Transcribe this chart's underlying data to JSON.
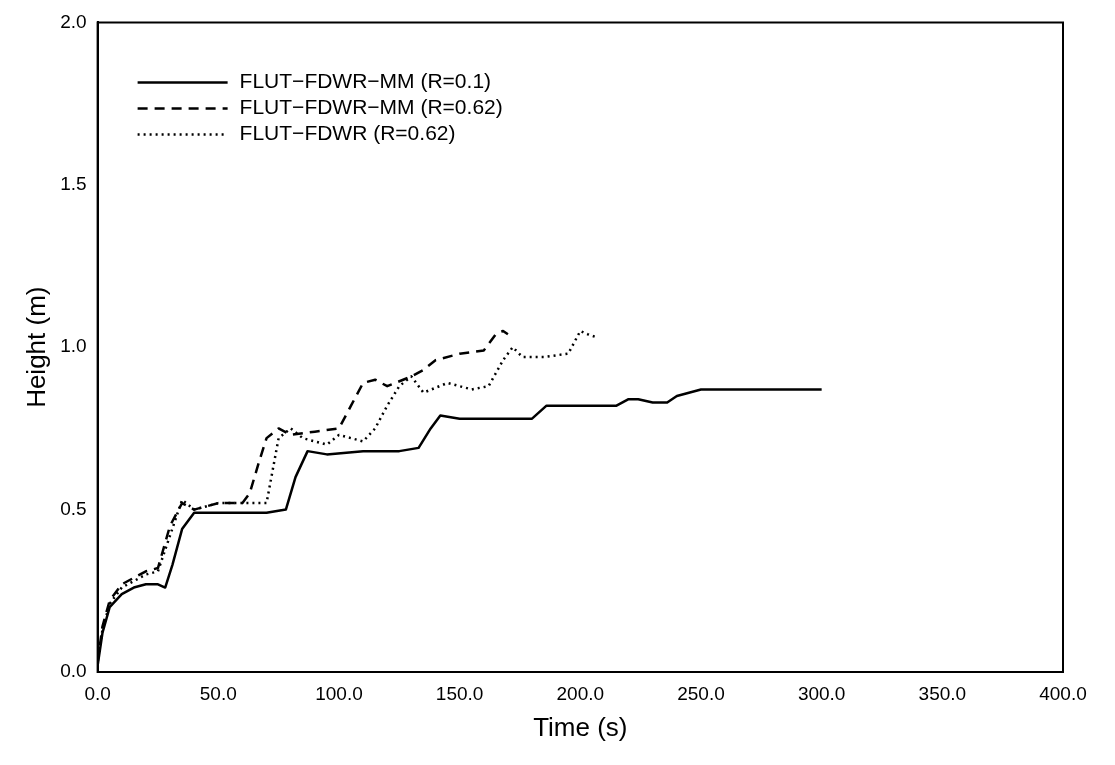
{
  "chart_data": {
    "type": "line",
    "xlabel": "Time (s)",
    "ylabel": "Height (m)",
    "xlim": [
      0,
      400
    ],
    "ylim": [
      0,
      2
    ],
    "xticks": [
      {
        "value": 0,
        "label": "0.0"
      },
      {
        "value": 50,
        "label": "50.0"
      },
      {
        "value": 100,
        "label": "100.0"
      },
      {
        "value": 150,
        "label": "150.0"
      },
      {
        "value": 200,
        "label": "200.0"
      },
      {
        "value": 250,
        "label": "250.0"
      },
      {
        "value": 300,
        "label": "300.0"
      },
      {
        "value": 350,
        "label": "350.0"
      },
      {
        "value": 400,
        "label": "400.0"
      }
    ],
    "yticks": [
      {
        "value": 0,
        "label": "0.0"
      },
      {
        "value": 0.5,
        "label": "0.5"
      },
      {
        "value": 1,
        "label": "1.0"
      },
      {
        "value": 1.5,
        "label": "1.5"
      },
      {
        "value": 2,
        "label": "2.0"
      }
    ],
    "grid": false,
    "legend": "top left",
    "marker": "none",
    "series": [
      {
        "name": "FLUT−FDWR−MM (R=0.1)",
        "color": "#000000",
        "line_style": "solid",
        "x": [
          0,
          2,
          5,
          10,
          15,
          20,
          25,
          28,
          31,
          35,
          40,
          50,
          60,
          70,
          78,
          82,
          87,
          95,
          110,
          125,
          133,
          138,
          142,
          150,
          165,
          180,
          186,
          190,
          205,
          215,
          220,
          224,
          230,
          236,
          240,
          245,
          250,
          260,
          280,
          300
        ],
        "values": [
          0.02,
          0.12,
          0.2,
          0.24,
          0.26,
          0.27,
          0.27,
          0.26,
          0.33,
          0.44,
          0.49,
          0.49,
          0.49,
          0.49,
          0.5,
          0.6,
          0.68,
          0.67,
          0.68,
          0.68,
          0.69,
          0.75,
          0.79,
          0.78,
          0.78,
          0.78,
          0.82,
          0.82,
          0.82,
          0.82,
          0.84,
          0.84,
          0.83,
          0.83,
          0.85,
          0.86,
          0.87,
          0.87,
          0.87,
          0.87
        ]
      },
      {
        "name": "FLUT−FDWR−MM (R=0.62)",
        "color": "#000000",
        "line_style": "dashed",
        "x": [
          0,
          2,
          5,
          10,
          15,
          20,
          25,
          30,
          35,
          40,
          50,
          60,
          63,
          67,
          70,
          75,
          80,
          90,
          100,
          105,
          110,
          115,
          120,
          130,
          135,
          140,
          150,
          160,
          165,
          168,
          170
        ],
        "values": [
          0.03,
          0.14,
          0.22,
          0.27,
          0.29,
          0.31,
          0.32,
          0.45,
          0.52,
          0.5,
          0.52,
          0.52,
          0.55,
          0.65,
          0.72,
          0.75,
          0.73,
          0.74,
          0.75,
          0.82,
          0.89,
          0.9,
          0.88,
          0.91,
          0.93,
          0.96,
          0.98,
          0.99,
          1.04,
          1.05,
          1.04
        ]
      },
      {
        "name": "FLUT−FDWR (R=0.62)",
        "color": "#000000",
        "line_style": "dotted",
        "x": [
          0,
          2,
          5,
          10,
          15,
          20,
          25,
          30,
          35,
          40,
          50,
          60,
          70,
          75,
          80,
          85,
          95,
          100,
          110,
          115,
          120,
          125,
          130,
          135,
          145,
          155,
          162,
          168,
          172,
          176,
          185,
          195,
          200,
          203,
          207
        ],
        "values": [
          0.03,
          0.13,
          0.21,
          0.26,
          0.28,
          0.3,
          0.31,
          0.42,
          0.53,
          0.5,
          0.52,
          0.52,
          0.52,
          0.72,
          0.75,
          0.72,
          0.7,
          0.73,
          0.71,
          0.75,
          0.82,
          0.88,
          0.91,
          0.86,
          0.89,
          0.87,
          0.88,
          0.96,
          1.0,
          0.97,
          0.97,
          0.98,
          1.05,
          1.04,
          1.03
        ]
      }
    ]
  }
}
